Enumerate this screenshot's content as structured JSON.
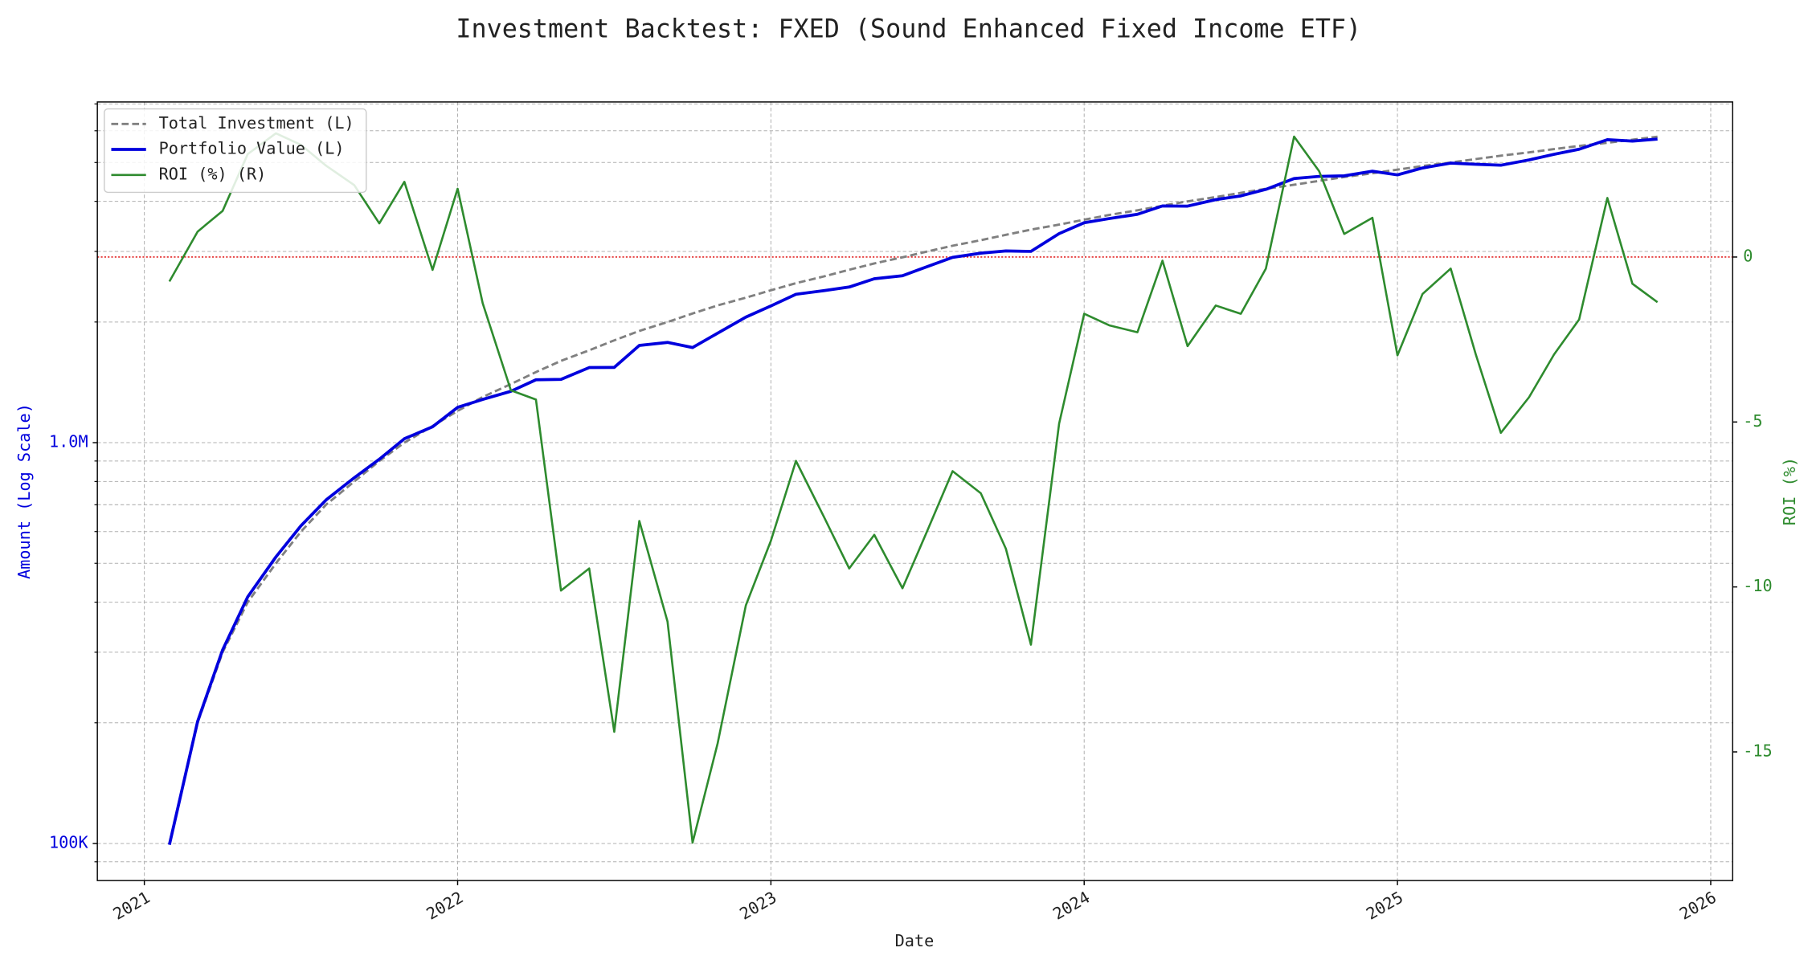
{
  "chart_data": {
    "type": "line",
    "title": "Investment Backtest: FXED (Sound Enhanced Fixed Income ETF)",
    "xlabel": "Date",
    "ylabel": "Amount (Log Scale)",
    "y2label": "ROI (%)",
    "ylabel_color": "#0000dd",
    "y2label_color": "#2e8b2e",
    "yscale": "log",
    "grid": true,
    "legend": "upper left",
    "x": [
      2021.08,
      2021.17,
      2021.25,
      2021.33,
      2021.42,
      2021.5,
      2021.58,
      2021.67,
      2021.75,
      2021.83,
      2021.92,
      2022,
      2022.08,
      2022.17,
      2022.25,
      2022.33,
      2022.42,
      2022.5,
      2022.58,
      2022.67,
      2022.75,
      2022.83,
      2022.92,
      2023,
      2023.08,
      2023.17,
      2023.25,
      2023.33,
      2023.42,
      2023.5,
      2023.58,
      2023.67,
      2023.75,
      2023.83,
      2023.92,
      2024,
      2024.08,
      2024.17,
      2024.25,
      2024.33,
      2024.42,
      2024.5,
      2024.58,
      2024.67,
      2024.75,
      2024.83,
      2024.92,
      2025,
      2025.08,
      2025.17,
      2025.25,
      2025.33,
      2025.42,
      2025.5,
      2025.58,
      2025.67,
      2025.75,
      2025.83
    ],
    "xlim": [
      2020.85,
      2026.07
    ],
    "xticks": [
      2021,
      2022,
      2023,
      2024,
      2025,
      2026
    ],
    "ylim": [
      80800,
      7080000
    ],
    "yticks": [
      {
        "value": 100000,
        "label": "100K"
      },
      {
        "value": 1000000,
        "label": "1.0M"
      }
    ],
    "y_minor_ticks": [
      90000,
      200000,
      300000,
      400000,
      500000,
      600000,
      700000,
      800000,
      900000,
      2000000,
      3000000,
      4000000,
      5000000,
      6000000,
      7000000
    ],
    "y2lim": [
      -18.9,
      4.7
    ],
    "y2ticks": [
      -15,
      -10,
      -5,
      0
    ],
    "hline": {
      "value": 0,
      "axis": "y2",
      "color": "#dd0000"
    },
    "series": [
      {
        "name": "Total Investment (L)",
        "color": "#808080",
        "style": "dashed",
        "axis": "y",
        "values": [
          100000,
          200000,
          300000,
          400000,
          500000,
          600000,
          700000,
          800000,
          900000,
          1000000,
          1100000,
          1200000,
          1300000,
          1400000,
          1500000,
          1600000,
          1700000,
          1800000,
          1900000,
          2000000,
          2100000,
          2200000,
          2300000,
          2400000,
          2500000,
          2600000,
          2700000,
          2800000,
          2900000,
          3000000,
          3100000,
          3200000,
          3300000,
          3400000,
          3500000,
          3600000,
          3700000,
          3800000,
          3900000,
          4000000,
          4100000,
          4200000,
          4300000,
          4400000,
          4500000,
          4600000,
          4700000,
          4800000,
          4900000,
          5000000,
          5100000,
          5200000,
          5300000,
          5400000,
          5500000,
          5600000,
          5700000,
          5800000
        ]
      },
      {
        "name": "Portfolio Value (L)",
        "color": "#0000dd",
        "style": "solid-thick",
        "axis": "y",
        "values": [
          99260,
          201540,
          304200,
          412480,
          518750,
          620400,
          719390,
          817440,
          909180,
          1022800,
          1095710,
          1224840,
          1281800,
          1343440,
          1435200,
          1438240,
          1539520,
          1540980,
          1748000,
          1779000,
          1727250,
          1875720,
          2057120,
          2193600,
          2345500,
          2394860,
          2445120,
          2564240,
          2608840,
          2751600,
          2898810,
          2970880,
          3008280,
          3000500,
          3323250,
          3538080,
          3623410,
          3713360,
          3895710,
          3892000,
          4039730,
          4127760,
          4284950,
          4560600,
          4617000,
          4632200,
          4755930,
          4656960,
          4845120,
          4982500,
          4949550,
          4922840,
          5074750,
          5240700,
          5396050,
          5700240,
          5653830,
          5720540
        ]
      },
      {
        "name": "ROI (%) (R)",
        "color": "#2e8b2e",
        "style": "solid",
        "axis": "y2",
        "values": [
          -0.74,
          0.77,
          1.4,
          3.12,
          3.75,
          3.4,
          2.77,
          2.18,
          1.02,
          2.28,
          -0.39,
          2.07,
          -1.4,
          -4.04,
          -4.32,
          -10.11,
          -9.44,
          -14.39,
          -8,
          -11.05,
          -17.75,
          -14.74,
          -10.56,
          -8.6,
          -6.18,
          -7.89,
          -9.44,
          -8.42,
          -10.04,
          -8.28,
          -6.49,
          -7.16,
          -8.84,
          -11.75,
          -5.05,
          -1.72,
          -2.07,
          -2.28,
          -0.11,
          -2.7,
          -1.47,
          -1.72,
          -0.35,
          3.65,
          2.6,
          0.7,
          1.19,
          -2.98,
          -1.12,
          -0.35,
          -2.95,
          -5.33,
          -4.25,
          -2.95,
          -1.89,
          1.79,
          -0.81,
          -1.37
        ]
      }
    ]
  }
}
